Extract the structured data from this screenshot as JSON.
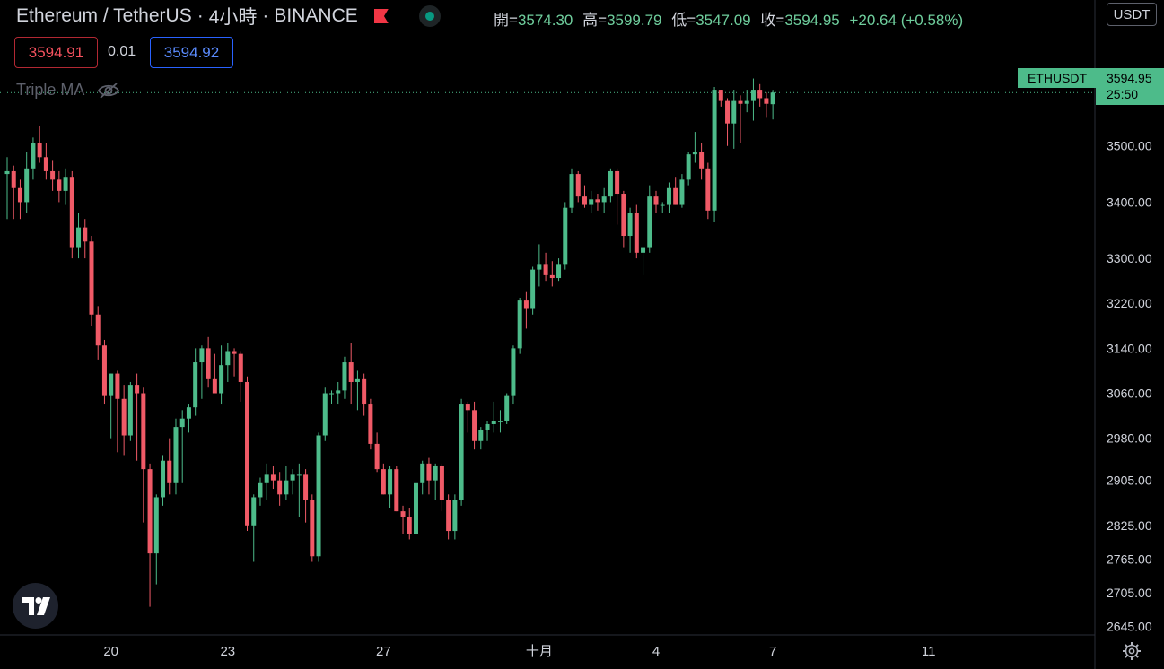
{
  "header": {
    "symbol": "Ethereum / TetherUS",
    "separator": "·",
    "interval": "4小時",
    "exchange": "BINANCE",
    "open_label": "開=",
    "open": "3574.30",
    "high_label": "高=",
    "high": "3599.79",
    "low_label": "低=",
    "low": "3547.09",
    "close_label": "收=",
    "close": "3594.95",
    "change": "+20.64 (+0.58%)"
  },
  "currency_button": "USDT",
  "quote": {
    "bid": "3594.91",
    "spread": "0.01",
    "ask": "3594.92"
  },
  "indicator": {
    "name": "Triple MA",
    "icon": "eye-crossed-icon"
  },
  "price_tag": {
    "symbol": "ETHUSDT",
    "price": "3594.95",
    "countdown": "25:50"
  },
  "logo": "TradingView-icon",
  "settings_icon": "gear-icon",
  "colors": {
    "up": "#4dbb8a",
    "down": "#f05a67",
    "background": "#000000",
    "text": "#d1d4dc"
  },
  "chart_data": {
    "type": "candlestick",
    "interval": "4h",
    "y_ticks": [
      "3500.00",
      "3400.00",
      "3300.00",
      "3220.00",
      "3140.00",
      "3060.00",
      "2980.00",
      "2905.00",
      "2825.00",
      "2765.00",
      "2705.00",
      "2645.00"
    ],
    "x_ticks": [
      {
        "label": "20",
        "idx": 16
      },
      {
        "label": "23",
        "idx": 34
      },
      {
        "label": "27",
        "idx": 58
      },
      {
        "label": "十月",
        "idx": 82
      },
      {
        "label": "4",
        "idx": 100
      },
      {
        "label": "7",
        "idx": 118
      },
      {
        "label": "11",
        "idx": 142
      }
    ],
    "ylim": [
      2630,
      3715
    ],
    "last_price": 3594.95,
    "grid": false,
    "candles": [
      [
        3450,
        3480,
        3370,
        3455
      ],
      [
        3455,
        3465,
        3370,
        3425
      ],
      [
        3425,
        3440,
        3370,
        3400
      ],
      [
        3400,
        3490,
        3380,
        3460
      ],
      [
        3460,
        3515,
        3440,
        3505
      ],
      [
        3505,
        3535,
        3470,
        3480
      ],
      [
        3480,
        3505,
        3440,
        3455
      ],
      [
        3455,
        3475,
        3420,
        3440
      ],
      [
        3440,
        3455,
        3400,
        3420
      ],
      [
        3420,
        3460,
        3395,
        3445
      ],
      [
        3445,
        3455,
        3300,
        3320
      ],
      [
        3320,
        3380,
        3300,
        3355
      ],
      [
        3355,
        3370,
        3300,
        3330
      ],
      [
        3330,
        3340,
        3180,
        3200
      ],
      [
        3200,
        3215,
        3120,
        3145
      ],
      [
        3145,
        3155,
        3040,
        3055
      ],
      [
        3055,
        3095,
        2980,
        3095
      ],
      [
        3095,
        3100,
        2955,
        3050
      ],
      [
        3050,
        3075,
        2950,
        2985
      ],
      [
        2985,
        3080,
        2975,
        3075
      ],
      [
        3075,
        3095,
        2940,
        3060
      ],
      [
        3060,
        3070,
        2830,
        2925
      ],
      [
        2925,
        2935,
        2680,
        2775
      ],
      [
        2775,
        2880,
        2720,
        2875
      ],
      [
        2875,
        2950,
        2860,
        2940
      ],
      [
        2940,
        2980,
        2880,
        2900
      ],
      [
        2900,
        3015,
        2880,
        3000
      ],
      [
        3000,
        3030,
        2900,
        3015
      ],
      [
        3015,
        3040,
        2990,
        3035
      ],
      [
        3035,
        3140,
        3020,
        3115
      ],
      [
        3115,
        3145,
        3050,
        3140
      ],
      [
        3140,
        3160,
        3070,
        3085
      ],
      [
        3085,
        3130,
        3060,
        3060
      ],
      [
        3060,
        3145,
        3040,
        3110
      ],
      [
        3110,
        3150,
        3080,
        3135
      ],
      [
        3135,
        3140,
        3090,
        3130
      ],
      [
        3130,
        3135,
        3045,
        3080
      ],
      [
        3080,
        3090,
        2815,
        2825
      ],
      [
        2825,
        2880,
        2760,
        2875
      ],
      [
        2875,
        2910,
        2860,
        2900
      ],
      [
        2900,
        2935,
        2870,
        2915
      ],
      [
        2915,
        2930,
        2890,
        2905
      ],
      [
        2905,
        2920,
        2860,
        2880
      ],
      [
        2880,
        2930,
        2870,
        2905
      ],
      [
        2905,
        2925,
        2880,
        2915
      ],
      [
        2915,
        2935,
        2840,
        2915
      ],
      [
        2915,
        2925,
        2830,
        2870
      ],
      [
        2870,
        2880,
        2760,
        2770
      ],
      [
        2770,
        2990,
        2760,
        2985
      ],
      [
        2985,
        3070,
        2975,
        3060
      ],
      [
        3060,
        3065,
        3040,
        3060
      ],
      [
        3060,
        3080,
        3040,
        3065
      ],
      [
        3065,
        3125,
        3050,
        3115
      ],
      [
        3115,
        3150,
        3040,
        3080
      ],
      [
        3080,
        3100,
        3030,
        3085
      ],
      [
        3085,
        3095,
        3020,
        3040
      ],
      [
        3040,
        3050,
        2960,
        2970
      ],
      [
        2970,
        2990,
        2920,
        2925
      ],
      [
        2925,
        2935,
        2880,
        2880
      ],
      [
        2880,
        2930,
        2855,
        2925
      ],
      [
        2925,
        2930,
        2850,
        2850
      ],
      [
        2850,
        2860,
        2810,
        2840
      ],
      [
        2840,
        2855,
        2800,
        2810
      ],
      [
        2810,
        2905,
        2800,
        2900
      ],
      [
        2900,
        2940,
        2880,
        2935
      ],
      [
        2935,
        2945,
        2880,
        2905
      ],
      [
        2905,
        2935,
        2870,
        2930
      ],
      [
        2930,
        2935,
        2850,
        2870
      ],
      [
        2870,
        2880,
        2800,
        2815
      ],
      [
        2815,
        2880,
        2800,
        2870
      ],
      [
        2870,
        3050,
        2860,
        3040
      ],
      [
        3040,
        3045,
        2990,
        3030
      ],
      [
        3030,
        3045,
        2960,
        2975
      ],
      [
        2975,
        3000,
        2960,
        2995
      ],
      [
        2995,
        3010,
        2975,
        3005
      ],
      [
        3005,
        3045,
        2990,
        3010
      ],
      [
        3010,
        3030,
        2990,
        3010
      ],
      [
        3010,
        3060,
        3005,
        3055
      ],
      [
        3055,
        3145,
        3040,
        3140
      ],
      [
        3140,
        3230,
        3130,
        3225
      ],
      [
        3225,
        3240,
        3175,
        3210
      ],
      [
        3210,
        3285,
        3200,
        3280
      ],
      [
        3280,
        3325,
        3250,
        3290
      ],
      [
        3290,
        3310,
        3260,
        3270
      ],
      [
        3270,
        3295,
        3250,
        3265
      ],
      [
        3265,
        3300,
        3260,
        3290
      ],
      [
        3290,
        3400,
        3280,
        3390
      ],
      [
        3390,
        3460,
        3380,
        3450
      ],
      [
        3450,
        3455,
        3400,
        3410
      ],
      [
        3410,
        3430,
        3390,
        3395
      ],
      [
        3395,
        3420,
        3380,
        3405
      ],
      [
        3405,
        3415,
        3385,
        3400
      ],
      [
        3400,
        3425,
        3380,
        3410
      ],
      [
        3410,
        3460,
        3400,
        3455
      ],
      [
        3455,
        3460,
        3360,
        3415
      ],
      [
        3415,
        3420,
        3320,
        3340
      ],
      [
        3340,
        3390,
        3310,
        3380
      ],
      [
        3380,
        3395,
        3300,
        3310
      ],
      [
        3310,
        3320,
        3270,
        3320
      ],
      [
        3320,
        3430,
        3310,
        3410
      ],
      [
        3410,
        3420,
        3380,
        3395
      ],
      [
        3395,
        3400,
        3380,
        3395
      ],
      [
        3395,
        3435,
        3380,
        3425
      ],
      [
        3425,
        3445,
        3395,
        3395
      ],
      [
        3395,
        3450,
        3390,
        3440
      ],
      [
        3440,
        3490,
        3430,
        3485
      ],
      [
        3485,
        3525,
        3470,
        3490
      ],
      [
        3490,
        3505,
        3440,
        3460
      ],
      [
        3460,
        3470,
        3370,
        3385
      ],
      [
        3385,
        3605,
        3365,
        3600
      ],
      [
        3600,
        3600,
        3570,
        3580
      ],
      [
        3580,
        3585,
        3500,
        3540
      ],
      [
        3540,
        3600,
        3495,
        3580
      ],
      [
        3580,
        3590,
        3505,
        3575
      ],
      [
        3575,
        3600,
        3560,
        3580
      ],
      [
        3580,
        3620,
        3545,
        3600
      ],
      [
        3600,
        3610,
        3570,
        3585
      ],
      [
        3585,
        3595,
        3550,
        3575
      ],
      [
        3574.3,
        3599.79,
        3547.09,
        3594.95
      ]
    ]
  }
}
